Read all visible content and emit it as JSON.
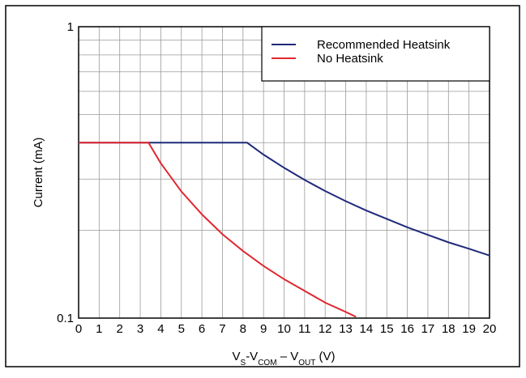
{
  "chart_data": {
    "type": "line",
    "ylabel": "Current (mA)",
    "xlabel_parts": [
      {
        "text": "V"
      },
      {
        "text": "S",
        "sub": true
      },
      {
        "text": "-V"
      },
      {
        "text": "COM",
        "sub": true
      },
      {
        "text": " – V"
      },
      {
        "text": "OUT",
        "sub": true
      },
      {
        "text": " (V)"
      }
    ],
    "xlim": [
      0,
      20
    ],
    "xticks": [
      0,
      1,
      2,
      3,
      4,
      5,
      6,
      7,
      8,
      9,
      10,
      11,
      12,
      13,
      14,
      15,
      16,
      17,
      18,
      19,
      20
    ],
    "ylim": [
      0.1,
      1
    ],
    "yticks": [
      0.1,
      1
    ],
    "yminorticks": [
      0.2,
      0.3,
      0.4,
      0.5,
      0.6,
      0.7,
      0.8,
      0.9
    ],
    "ylog": true,
    "grid": true,
    "legend": "upper right",
    "series": [
      {
        "name": "Recommended Heatsink",
        "color": "#1f2a7a",
        "x": [
          0,
          8.2,
          9,
          10,
          11,
          12,
          13,
          14,
          15,
          16,
          17,
          18,
          19,
          20
        ],
        "values": [
          0.4,
          0.4,
          0.364,
          0.328,
          0.298,
          0.273,
          0.252,
          0.234,
          0.219,
          0.205,
          0.193,
          0.182,
          0.173,
          0.164
        ]
      },
      {
        "name": "No Heatsink",
        "color": "#e0282e",
        "x": [
          0,
          3.4,
          4,
          5,
          6,
          7,
          8,
          9,
          10,
          11,
          12,
          13,
          13.5
        ],
        "values": [
          0.4,
          0.4,
          0.34,
          0.272,
          0.227,
          0.194,
          0.17,
          0.151,
          0.136,
          0.124,
          0.113,
          0.105,
          0.101
        ]
      }
    ]
  }
}
